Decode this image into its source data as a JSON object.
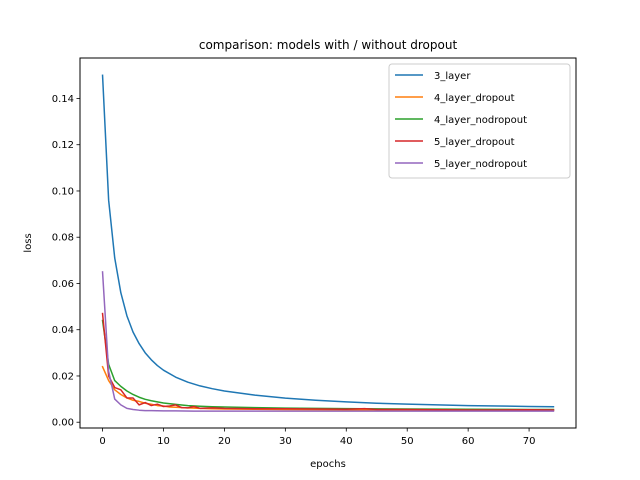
{
  "chart_data": {
    "type": "line",
    "title": "comparison: models with / without dropout",
    "xlabel": "epochs",
    "ylabel": "loss",
    "xlim": [
      -3.7,
      77.7
    ],
    "ylim": [
      -0.0025,
      0.1575
    ],
    "xticks": [
      0,
      10,
      20,
      30,
      40,
      50,
      60,
      70
    ],
    "xtick_labels": [
      "0",
      "10",
      "20",
      "30",
      "40",
      "50",
      "60",
      "70"
    ],
    "yticks": [
      0.0,
      0.02,
      0.04,
      0.06,
      0.08,
      0.1,
      0.12,
      0.14
    ],
    "ytick_labels": [
      "0.00",
      "0.02",
      "0.04",
      "0.06",
      "0.08",
      "0.10",
      "0.12",
      "0.14"
    ],
    "grid": false,
    "legend_position": "top-right",
    "series": [
      {
        "name": "3_layer",
        "color": "#1f77b4",
        "x": [
          0,
          1,
          2,
          3,
          4,
          5,
          6,
          7,
          8,
          9,
          10,
          12,
          14,
          16,
          18,
          20,
          25,
          30,
          35,
          40,
          45,
          50,
          55,
          60,
          65,
          70,
          74
        ],
        "y": [
          0.15,
          0.096,
          0.071,
          0.056,
          0.046,
          0.039,
          0.034,
          0.03,
          0.027,
          0.0245,
          0.0225,
          0.0195,
          0.0173,
          0.0157,
          0.0145,
          0.0135,
          0.0117,
          0.0104,
          0.0095,
          0.0088,
          0.0082,
          0.0078,
          0.0075,
          0.0072,
          0.007,
          0.0068,
          0.0067
        ]
      },
      {
        "name": "4_layer_dropout",
        "color": "#ff7f0e",
        "x": [
          0,
          1,
          2,
          3,
          4,
          5,
          6,
          7,
          8,
          9,
          10,
          11,
          12,
          14,
          16,
          18,
          20,
          25,
          30,
          40,
          50,
          60,
          70,
          74
        ],
        "y": [
          0.024,
          0.018,
          0.014,
          0.012,
          0.0105,
          0.0095,
          0.009,
          0.0082,
          0.0078,
          0.0072,
          0.007,
          0.0066,
          0.0065,
          0.0062,
          0.006,
          0.0058,
          0.0057,
          0.0056,
          0.0055,
          0.0054,
          0.0053,
          0.0053,
          0.0052,
          0.0052
        ]
      },
      {
        "name": "4_layer_nodropout",
        "color": "#2ca02c",
        "x": [
          0,
          1,
          2,
          3,
          4,
          5,
          6,
          7,
          8,
          9,
          10,
          12,
          14,
          16,
          18,
          20,
          25,
          30,
          40,
          50,
          60,
          70,
          74
        ],
        "y": [
          0.044,
          0.025,
          0.018,
          0.0155,
          0.0135,
          0.012,
          0.0108,
          0.0099,
          0.0093,
          0.0088,
          0.0083,
          0.0077,
          0.0072,
          0.0069,
          0.0067,
          0.0066,
          0.0063,
          0.0061,
          0.0059,
          0.0057,
          0.0056,
          0.0055,
          0.0055
        ]
      },
      {
        "name": "5_layer_dropout",
        "color": "#d62728",
        "x": [
          0,
          1,
          2,
          3,
          4,
          5,
          6,
          7,
          8,
          9,
          10,
          11,
          12,
          13,
          14,
          15,
          16,
          18,
          20,
          25,
          30,
          35,
          40,
          43,
          45,
          50,
          55,
          60,
          65,
          70,
          74
        ],
        "y": [
          0.047,
          0.02,
          0.015,
          0.014,
          0.0105,
          0.0105,
          0.0075,
          0.0085,
          0.0072,
          0.0078,
          0.0068,
          0.007,
          0.0075,
          0.0063,
          0.0062,
          0.0068,
          0.006,
          0.0062,
          0.006,
          0.0058,
          0.0058,
          0.0057,
          0.0056,
          0.0059,
          0.0055,
          0.0055,
          0.0054,
          0.0053,
          0.0053,
          0.0054,
          0.0053
        ]
      },
      {
        "name": "5_layer_nodropout",
        "color": "#9467bd",
        "x": [
          0,
          1,
          2,
          3,
          4,
          5,
          6,
          7,
          8,
          10,
          12,
          15,
          20,
          30,
          40,
          50,
          60,
          70,
          74
        ],
        "y": [
          0.065,
          0.022,
          0.01,
          0.0075,
          0.006,
          0.0055,
          0.0052,
          0.005,
          0.005,
          0.0049,
          0.0049,
          0.0048,
          0.0048,
          0.0048,
          0.0048,
          0.0048,
          0.0048,
          0.0048,
          0.0048
        ]
      }
    ]
  }
}
